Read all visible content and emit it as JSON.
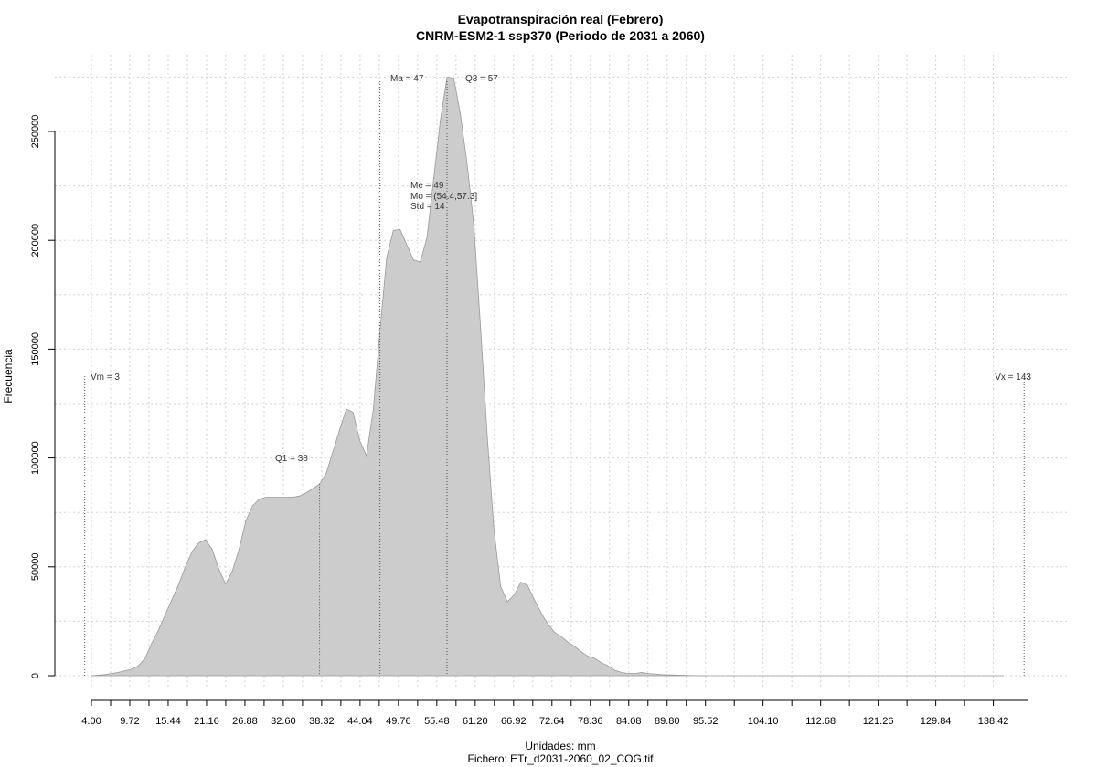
{
  "chart_data": {
    "type": "area",
    "title": "Evapotranspiración real (Febrero)",
    "subtitle": "CNRM-ESM2-1 ssp370 (Periodo de 2031 a 2060)",
    "xlabel": "Unidades: mm",
    "ylabel": "Frecuencia",
    "caption": "Fichero: ETr_d2031-2060_02_COG.tif",
    "xlim": [
      2,
      144
    ],
    "ylim": [
      0,
      275000
    ],
    "grid": true,
    "fill_color": "#cccccc",
    "line_color": "#999999",
    "x_ticks": [
      "4.00",
      "9.72",
      "15.44",
      "21.16",
      "26.88",
      "32.60",
      "38.32",
      "44.04",
      "49.76",
      "55.48",
      "61.20",
      "66.92",
      "72.64",
      "78.36",
      "84.08",
      "89.80",
      "95.52",
      "104.10",
      "112.68",
      "121.26",
      "129.84",
      "138.42"
    ],
    "y_ticks": [
      "0",
      "50000",
      "100000",
      "150000",
      "200000",
      "250000"
    ],
    "y_tick_values": [
      0,
      50000,
      100000,
      150000,
      200000,
      250000
    ],
    "x": [
      4,
      6,
      8,
      10,
      11,
      12,
      13,
      14,
      15,
      16,
      17,
      18,
      19,
      20,
      21,
      22,
      23,
      24,
      25,
      26,
      27,
      28,
      29,
      30,
      31,
      32,
      33,
      34,
      35,
      36,
      37,
      38,
      39,
      40,
      41,
      42,
      43,
      44,
      45,
      46,
      47,
      48,
      49,
      50,
      51,
      52,
      53,
      54,
      55,
      56,
      57,
      58,
      59,
      60,
      61,
      62,
      63,
      64,
      65,
      66,
      67,
      68,
      69,
      70,
      71,
      72,
      73,
      74,
      75,
      76,
      77,
      78,
      79,
      80,
      81,
      82,
      83,
      84,
      85,
      86,
      87,
      88,
      89,
      90,
      91,
      92,
      93,
      94,
      95,
      96,
      100,
      105,
      110,
      120,
      130,
      140
    ],
    "y": [
      0,
      500,
      1500,
      3000,
      4500,
      8000,
      15000,
      21000,
      28000,
      35000,
      42000,
      50000,
      57000,
      61000,
      62500,
      58000,
      49000,
      42000,
      48000,
      58000,
      71000,
      78000,
      81000,
      82000,
      82000,
      82000,
      82000,
      82000,
      82500,
      84000,
      86000,
      88000,
      93000,
      103000,
      113000,
      122500,
      121000,
      108000,
      101000,
      122000,
      158000,
      192000,
      204500,
      205000,
      198000,
      191000,
      190000,
      201000,
      228000,
      255000,
      275000,
      274500,
      258000,
      235000,
      207000,
      160000,
      110000,
      67000,
      41000,
      34000,
      37000,
      43000,
      41500,
      35000,
      29000,
      24000,
      20000,
      18000,
      15500,
      13500,
      11000,
      9000,
      8000,
      6000,
      4500,
      2500,
      1500,
      1000,
      1000,
      1500,
      1000,
      800,
      500,
      400,
      300,
      200,
      100,
      50,
      20,
      10,
      5,
      2,
      1,
      0,
      0,
      0
    ],
    "stats": {
      "min": {
        "label": "Vm = 3",
        "value": 3
      },
      "max": {
        "label": "Vx = 143",
        "value": 143
      },
      "q1": {
        "label": "Q1 = 38",
        "value": 38
      },
      "q3": {
        "label": "Q3 = 57",
        "value": 57
      },
      "mean": {
        "label": "Ma = 47",
        "value": 47
      },
      "median": "Me = 49",
      "mode": "Mo = (54.4,57.3]",
      "std": "Std = 14"
    }
  }
}
